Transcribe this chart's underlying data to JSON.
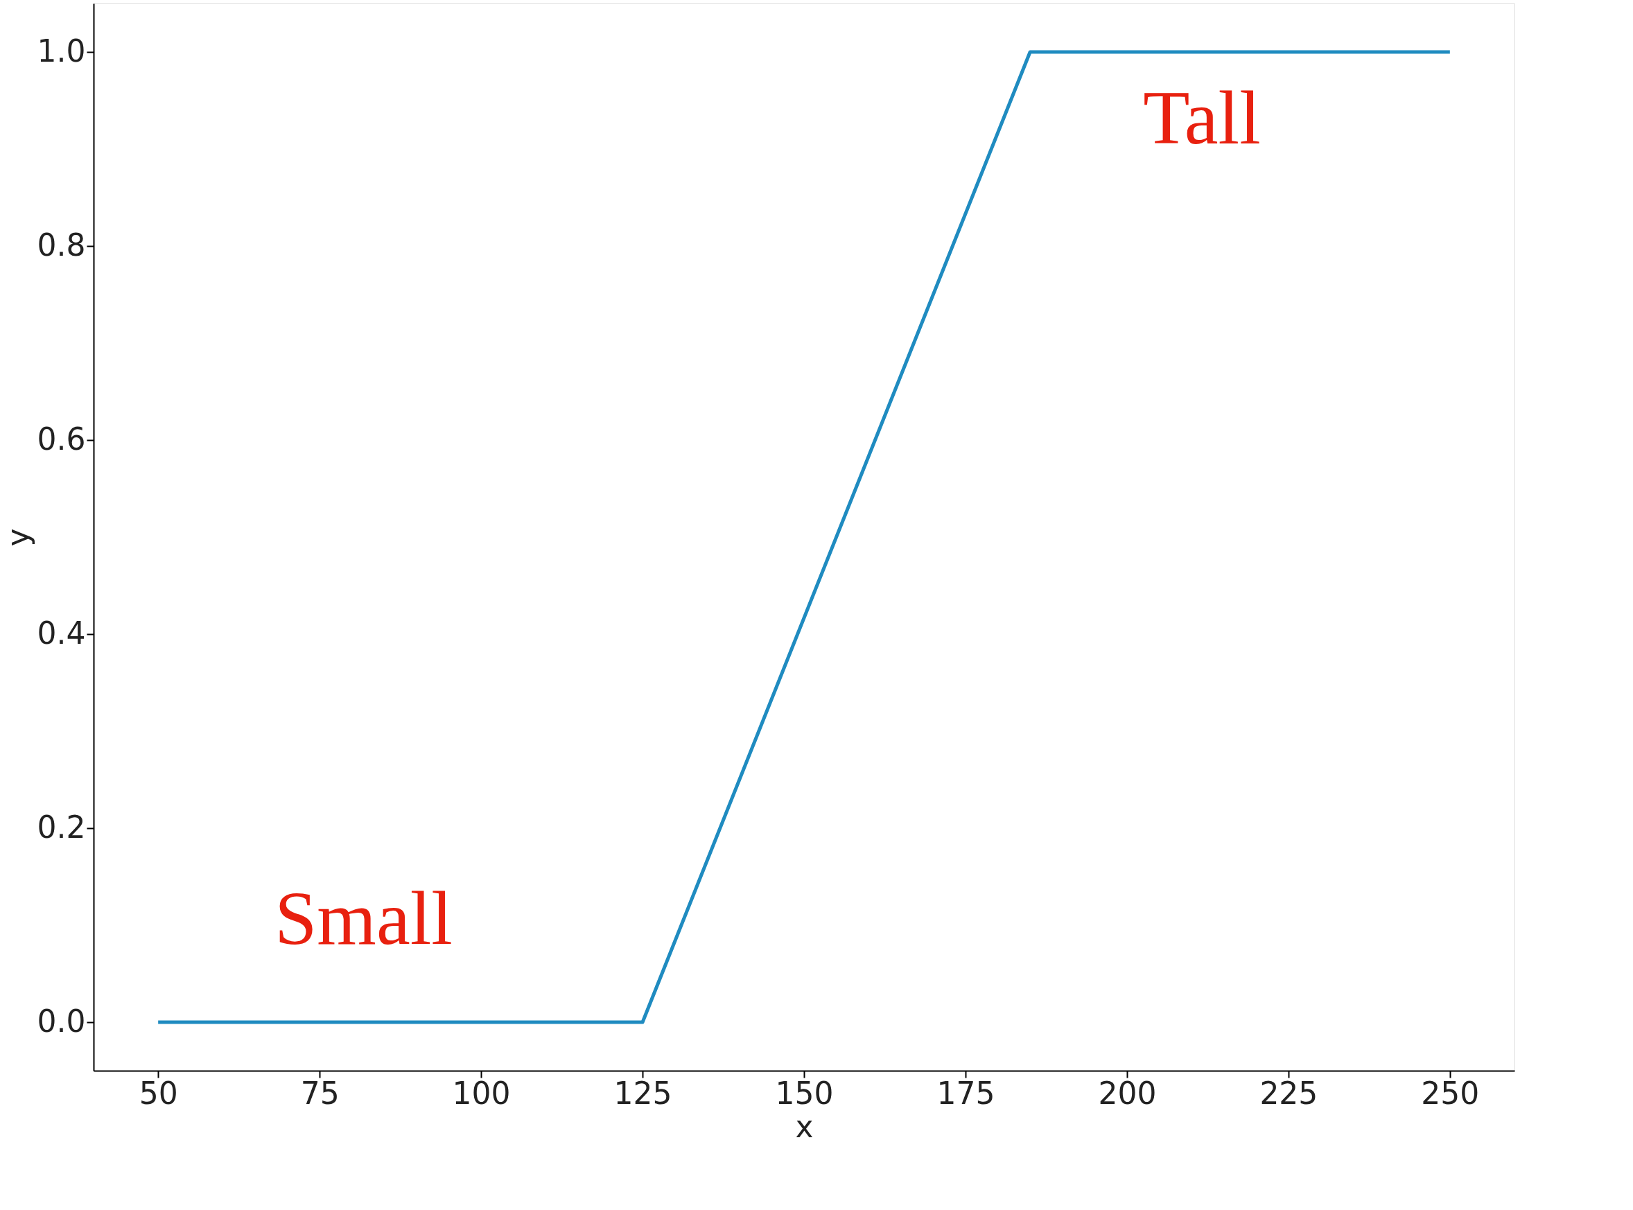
{
  "chart_data": {
    "type": "line",
    "xlabel": "x",
    "ylabel": "y",
    "x": [
      50,
      125,
      185,
      250
    ],
    "series": [
      {
        "color": "#1f8bc0",
        "values": [
          0,
          0,
          1,
          1
        ]
      }
    ],
    "xlim": [
      40,
      260
    ],
    "xticks": [
      50,
      75,
      100,
      125,
      150,
      175,
      200,
      225,
      250
    ],
    "ylim": [
      -0.05,
      1.05
    ],
    "yticks": [
      {
        "value": 0,
        "label": "0.0"
      },
      0.2,
      0.4,
      0.6,
      0.8,
      {
        "value": 1,
        "label": "1.0"
      }
    ],
    "grid": false,
    "legend": false,
    "marker": "none",
    "line_style": "solid",
    "annotations": [
      "Small",
      "Tall"
    ]
  }
}
